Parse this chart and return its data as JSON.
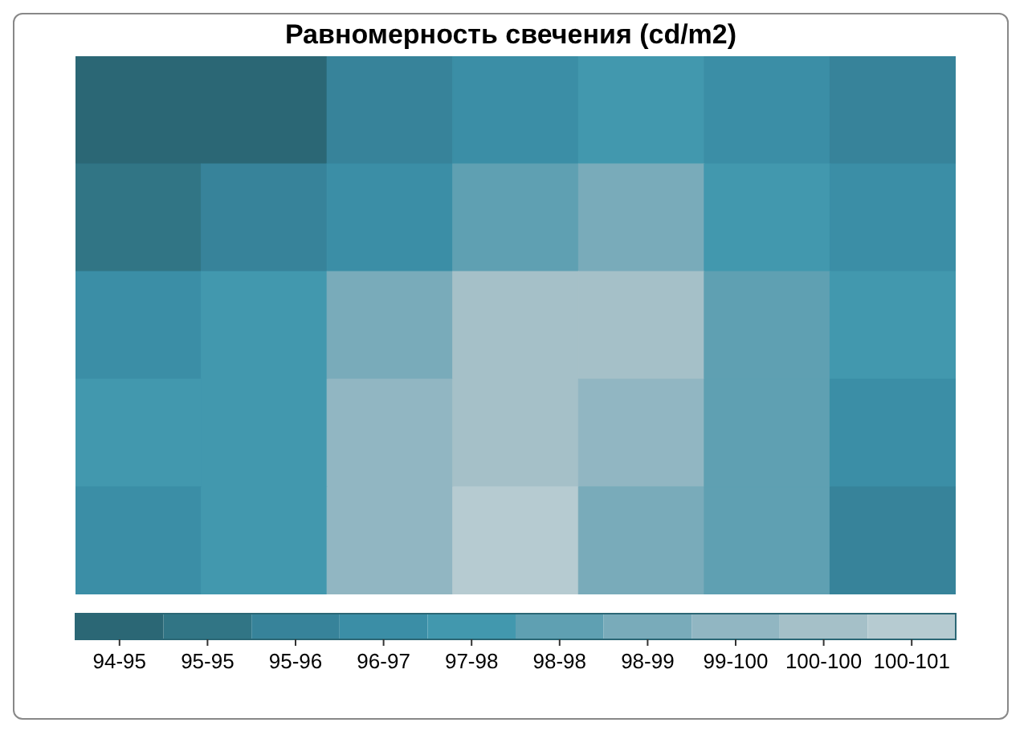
{
  "chart_data": {
    "type": "heatmap",
    "title": "Равномерность свечения (cd/m2)",
    "categories": [
      null,
      null,
      null,
      null,
      null,
      null,
      null
    ],
    "y_categories": [
      null,
      null,
      null,
      null,
      null
    ],
    "cells": [
      [
        94.3,
        94.3,
        95.8,
        96.5,
        97.2,
        96.5,
        95.8
      ],
      [
        95.0,
        95.8,
        96.5,
        97.9,
        98.6,
        97.2,
        96.5
      ],
      [
        96.5,
        97.2,
        98.6,
        100.0,
        100.0,
        97.9,
        97.2
      ],
      [
        97.2,
        97.2,
        99.3,
        100.0,
        99.3,
        97.9,
        96.5
      ],
      [
        96.5,
        97.2,
        99.3,
        100.6,
        98.6,
        97.9,
        95.8
      ]
    ],
    "clim": [
      94,
      101
    ],
    "cticks": [
      {
        "value": 94.35,
        "label": "94-95"
      },
      {
        "value": 95.05,
        "label": "95-95"
      },
      {
        "value": 95.75,
        "label": "95-96"
      },
      {
        "value": 96.45,
        "label": "96-97"
      },
      {
        "value": 97.15,
        "label": "97-98"
      },
      {
        "value": 97.85,
        "label": "98-98"
      },
      {
        "value": 98.55,
        "label": "98-99"
      },
      {
        "value": 99.25,
        "label": "99-100"
      },
      {
        "value": 99.95,
        "label": "100-100"
      },
      {
        "value": 100.65,
        "label": "100-101"
      }
    ],
    "colors": [
      "#2b6775",
      "#317585",
      "#37839a",
      "#3b8ea6",
      "#4298ae",
      "#5fa0b2",
      "#79abba",
      "#91b6c2",
      "#a5c0c8",
      "#b6cbd1"
    ]
  }
}
